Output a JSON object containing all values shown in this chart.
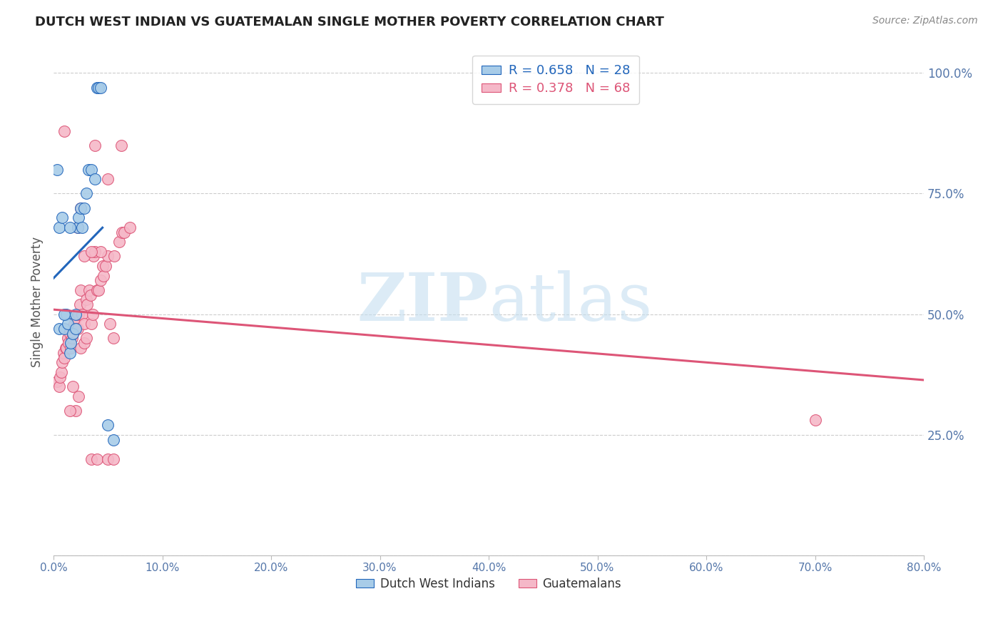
{
  "title": "DUTCH WEST INDIAN VS GUATEMALAN SINGLE MOTHER POVERTY CORRELATION CHART",
  "source": "Source: ZipAtlas.com",
  "ylabel": "Single Mother Poverty",
  "ytick_vals": [
    0.0,
    0.25,
    0.5,
    0.75,
    1.0
  ],
  "ytick_labels_right": [
    "",
    "25.0%",
    "50.0%",
    "75.0%",
    "100.0%"
  ],
  "legend_entry1": "R = 0.658   N = 28",
  "legend_entry2": "R = 0.378   N = 68",
  "legend_label1": "Dutch West Indians",
  "legend_label2": "Guatemalans",
  "blue_color": "#a8cce8",
  "pink_color": "#f5b8c8",
  "trendline_blue": "#2266bb",
  "trendline_pink": "#dd5577",
  "background_color": "#ffffff",
  "watermark_zip": "ZIP",
  "watermark_atlas": "atlas",
  "blue_points": [
    [
      0.5,
      0.47
    ],
    [
      1.0,
      0.47
    ],
    [
      1.2,
      0.5
    ],
    [
      1.3,
      0.48
    ],
    [
      1.5,
      0.42
    ],
    [
      1.6,
      0.44
    ],
    [
      1.8,
      0.46
    ],
    [
      2.0,
      0.47
    ],
    [
      2.0,
      0.5
    ],
    [
      2.2,
      0.68
    ],
    [
      2.3,
      0.7
    ],
    [
      2.5,
      0.72
    ],
    [
      2.6,
      0.68
    ],
    [
      2.8,
      0.72
    ],
    [
      3.0,
      0.75
    ],
    [
      3.2,
      0.8
    ],
    [
      3.5,
      0.8
    ],
    [
      3.8,
      0.78
    ],
    [
      4.0,
      0.97
    ],
    [
      4.1,
      0.97
    ],
    [
      4.3,
      0.97
    ],
    [
      5.0,
      0.27
    ],
    [
      5.5,
      0.24
    ],
    [
      0.3,
      0.8
    ],
    [
      0.5,
      0.68
    ],
    [
      0.8,
      0.7
    ],
    [
      1.0,
      0.5
    ],
    [
      1.5,
      0.68
    ]
  ],
  "pink_points": [
    [
      0.3,
      0.36
    ],
    [
      0.5,
      0.35
    ],
    [
      0.6,
      0.37
    ],
    [
      0.7,
      0.38
    ],
    [
      0.8,
      0.4
    ],
    [
      0.9,
      0.42
    ],
    [
      1.0,
      0.41
    ],
    [
      1.1,
      0.43
    ],
    [
      1.2,
      0.43
    ],
    [
      1.3,
      0.45
    ],
    [
      1.4,
      0.44
    ],
    [
      1.5,
      0.46
    ],
    [
      1.5,
      0.47
    ],
    [
      1.6,
      0.43
    ],
    [
      1.7,
      0.45
    ],
    [
      1.8,
      0.46
    ],
    [
      1.9,
      0.48
    ],
    [
      2.0,
      0.49
    ],
    [
      2.1,
      0.47
    ],
    [
      2.2,
      0.47
    ],
    [
      2.3,
      0.5
    ],
    [
      2.4,
      0.52
    ],
    [
      2.5,
      0.55
    ],
    [
      2.6,
      0.5
    ],
    [
      2.8,
      0.48
    ],
    [
      3.0,
      0.53
    ],
    [
      3.1,
      0.52
    ],
    [
      3.3,
      0.55
    ],
    [
      3.4,
      0.54
    ],
    [
      3.5,
      0.48
    ],
    [
      3.6,
      0.5
    ],
    [
      3.7,
      0.62
    ],
    [
      3.8,
      0.63
    ],
    [
      4.0,
      0.55
    ],
    [
      4.1,
      0.55
    ],
    [
      4.3,
      0.57
    ],
    [
      4.5,
      0.6
    ],
    [
      4.6,
      0.58
    ],
    [
      4.8,
      0.6
    ],
    [
      5.0,
      0.62
    ],
    [
      5.2,
      0.48
    ],
    [
      5.5,
      0.45
    ],
    [
      5.6,
      0.62
    ],
    [
      6.0,
      0.65
    ],
    [
      6.2,
      0.85
    ],
    [
      6.3,
      0.67
    ],
    [
      6.5,
      0.67
    ],
    [
      7.0,
      0.68
    ],
    [
      1.8,
      0.35
    ],
    [
      2.0,
      0.3
    ],
    [
      2.3,
      0.33
    ],
    [
      2.5,
      0.43
    ],
    [
      2.8,
      0.44
    ],
    [
      3.0,
      0.45
    ],
    [
      3.5,
      0.2
    ],
    [
      4.0,
      0.2
    ],
    [
      5.0,
      0.2
    ],
    [
      5.5,
      0.2
    ],
    [
      1.5,
      0.3
    ],
    [
      2.2,
      0.68
    ],
    [
      2.5,
      0.72
    ],
    [
      2.8,
      0.62
    ],
    [
      70.0,
      0.28
    ],
    [
      1.0,
      0.88
    ],
    [
      3.8,
      0.85
    ],
    [
      5.0,
      0.78
    ],
    [
      4.3,
      0.63
    ],
    [
      3.5,
      0.63
    ]
  ],
  "xlim": [
    0.0,
    80.0
  ],
  "ylim": [
    0.0,
    1.05
  ]
}
